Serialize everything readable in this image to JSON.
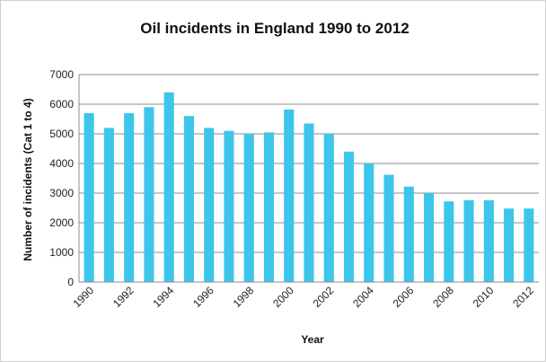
{
  "chart_data": {
    "type": "bar",
    "title": "Oil incidents in England 1990 to 2012",
    "xlabel": "Year",
    "ylabel": "Number of incidents (Cat 1 to 4)",
    "ylim": [
      0,
      7000
    ],
    "yticks": [
      "0",
      "1000",
      "2000",
      "3000",
      "4000",
      "5000",
      "6000",
      "7000"
    ],
    "categories": [
      "1990",
      "1991",
      "1992",
      "1993",
      "1994",
      "1995",
      "1996",
      "1997",
      "1998",
      "1999",
      "2000",
      "2001",
      "2002",
      "2003",
      "2004",
      "2005",
      "2006",
      "2007",
      "2008",
      "2009",
      "2010",
      "2011",
      "2012"
    ],
    "xtick_labels": [
      "1990",
      "1992",
      "1994",
      "1996",
      "1998",
      "2000",
      "2002",
      "2004",
      "2006",
      "2008",
      "2010",
      "2012"
    ],
    "values": [
      5700,
      5200,
      5700,
      5900,
      6400,
      5600,
      5200,
      5100,
      5000,
      5050,
      5820,
      5350,
      5000,
      4400,
      4000,
      3620,
      3220,
      3000,
      2720,
      2760,
      2760,
      2480,
      2480
    ],
    "grid": true,
    "legend": "none",
    "bar_color": "#3ec6ea"
  }
}
